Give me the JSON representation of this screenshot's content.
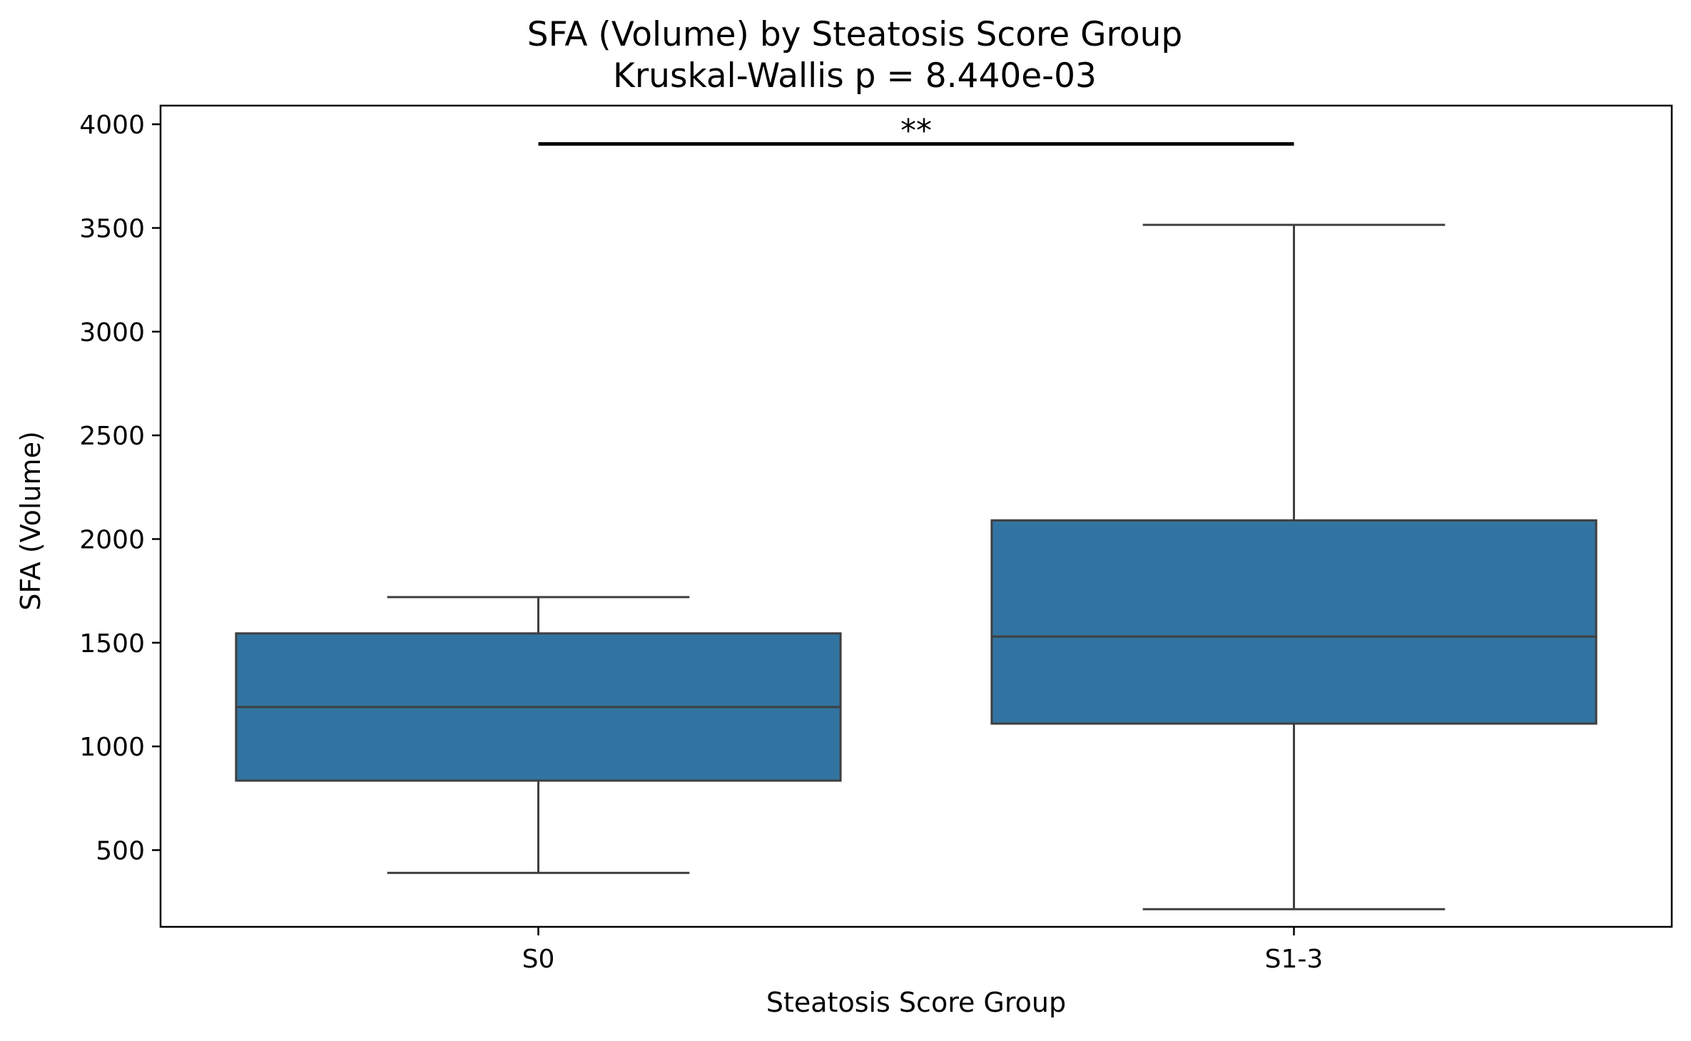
{
  "chart_data": {
    "type": "box",
    "title": "SFA (Volume) by Steatosis Score Group",
    "subtitle": "Kruskal-Wallis p = 8.440e-03",
    "xlabel": "Steatosis Score Group",
    "ylabel": "SFA (Volume)",
    "ylim": [
      130,
      4090
    ],
    "yticks": [
      500,
      1000,
      1500,
      2000,
      2500,
      3000,
      3500,
      4000
    ],
    "categories": [
      "S0",
      "S1-3"
    ],
    "boxes": [
      {
        "category": "S0",
        "whisker_low": 390,
        "q1": 835,
        "median": 1190,
        "q3": 1545,
        "whisker_high": 1720
      },
      {
        "category": "S1-3",
        "whisker_low": 215,
        "q1": 1110,
        "median": 1530,
        "q3": 2090,
        "whisker_high": 3515
      }
    ],
    "significance": {
      "from": "S0",
      "to": "S1-3",
      "y": 3905,
      "label": "**"
    },
    "colors": {
      "box_fill": "#3274a1",
      "box_edge": "#3f3f3f",
      "axis": "#000000",
      "background": "#ffffff"
    }
  }
}
